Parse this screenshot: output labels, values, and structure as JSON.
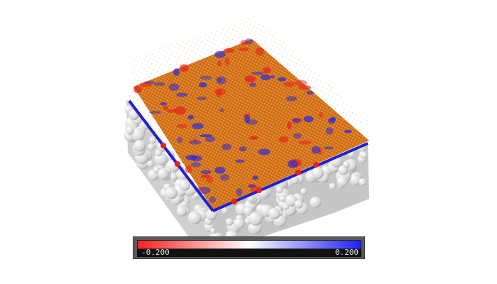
{
  "colorbar": {
    "min_label": "-0.200",
    "max_label": "0.200",
    "min_color": "#ff2020",
    "mid_color": "#ffffff",
    "max_color": "#2020ff",
    "label_color": "#dcdcdc"
  },
  "scene": {
    "background": "#ffffff",
    "surface_color": "#d8d8d8",
    "particle_color": "#d9761e",
    "negative_color": "#e81e1e",
    "positive_color": "#2a2ad8"
  }
}
